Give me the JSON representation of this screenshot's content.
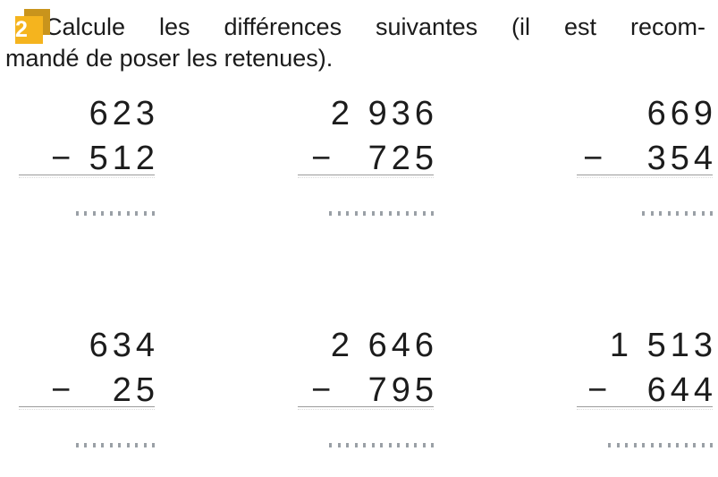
{
  "exercise": {
    "badge": {
      "number": "2",
      "face_color": "#F5B41E",
      "shadow_color": "#C9941C",
      "text_color": "#ffffff"
    },
    "instruction_line1": "Calcule les différences suivantes (il est recom-",
    "instruction_line2": "mandé de poser les retenues)."
  },
  "problems": [
    {
      "minuend": "623",
      "operator": "−",
      "subtrahend": "512",
      "answer_dots": 10
    },
    {
      "minuend": "2 936",
      "operator": "−",
      "subtrahend": "725",
      "answer_dots": 13
    },
    {
      "minuend": "669",
      "operator": "−",
      "subtrahend": "354",
      "answer_dots": 9
    },
    {
      "minuend": "634",
      "operator": "−",
      "subtrahend": "25",
      "answer_dots": 10
    },
    {
      "minuend": "2 646",
      "operator": "−",
      "subtrahend": "795",
      "answer_dots": 13
    },
    {
      "minuend": "1 513",
      "operator": "−",
      "subtrahend": "644",
      "answer_dots": 13
    }
  ],
  "colors": {
    "text": "#1b1b1b",
    "rule_line": "#9c9c9c",
    "faint_dotted_line": "#dcdcdc",
    "answer_dots": "#9aa0a6",
    "page_background": "#ffffff"
  }
}
